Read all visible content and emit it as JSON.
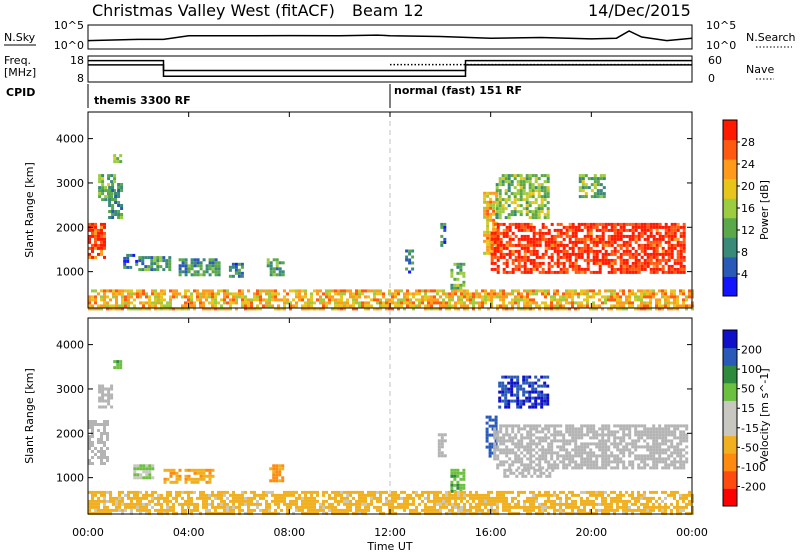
{
  "header": {
    "title": "Christmas Valley West (fitACF)",
    "beam": "Beam 12",
    "date": "14/Dec/2015"
  },
  "top_panels": {
    "nsky_label": "N.Sky",
    "nsearch_label": "N.Search",
    "nsky_ticks": [
      "10^5",
      "10^0"
    ],
    "nsearch_ticks": [
      "10^5",
      "10^0"
    ],
    "freq_label_1": "Freq.",
    "freq_label_2": "[MHz]",
    "freq_ticks": [
      "18",
      "8"
    ],
    "nave_label": "Nave",
    "nave_ticks": [
      "60",
      "0"
    ],
    "cpid_label": "CPID",
    "cpid_segments": [
      {
        "label": "themis 3300 RF",
        "start_hour": 0,
        "end_hour": 12
      },
      {
        "label": "normal (fast) 151 RF",
        "start_hour": 12,
        "end_hour": 24
      }
    ]
  },
  "time_axis": {
    "label": "Time UT",
    "ticks": [
      "00:00",
      "04:00",
      "08:00",
      "12:00",
      "16:00",
      "20:00",
      "00:00"
    ],
    "tick_hours": [
      0,
      4,
      8,
      12,
      16,
      20,
      24
    ]
  },
  "colors": {
    "power": [
      "#1414ff",
      "#2a5ab8",
      "#3a8a7a",
      "#5aa84a",
      "#9ccc40",
      "#e8c51a",
      "#ff9a1a",
      "#ff5a10",
      "#ff1a00"
    ],
    "velocity": [
      "#1010c8",
      "#2a5ab8",
      "#2e8b3e",
      "#6cc040",
      "#c8c8c0",
      "#c8c8c0",
      "#f0b020",
      "#ff8a10",
      "#ff4a10",
      "#ff0000"
    ],
    "ground_scatter": "#b4b4b4"
  },
  "chart_data": [
    {
      "type": "line",
      "name": "N.Sky / N.Search",
      "x_hours": [
        0,
        2,
        3,
        4,
        6,
        8,
        10,
        11.5,
        12,
        14,
        16,
        18,
        20,
        21,
        21.5,
        22,
        23,
        24
      ],
      "nsky_rel": [
        0.35,
        0.4,
        0.4,
        0.55,
        0.55,
        0.56,
        0.55,
        0.58,
        0.55,
        0.52,
        0.45,
        0.48,
        0.42,
        0.45,
        0.75,
        0.5,
        0.35,
        0.45
      ]
    },
    {
      "type": "line",
      "name": "Freq / Nave",
      "freq_steps": [
        {
          "start_hour": 0,
          "end_hour": 3,
          "mhz": 14.6
        },
        {
          "start_hour": 3,
          "end_hour": 15,
          "mhz": 10.2
        },
        {
          "start_hour": 15,
          "end_hour": 24,
          "mhz": 14.6
        }
      ],
      "freq_upper_band": [
        {
          "start_hour": 0,
          "end_hour": 3,
          "mhz": 16.2
        },
        {
          "start_hour": 3,
          "end_hour": 15,
          "mhz": 12.4
        },
        {
          "start_hour": 15,
          "end_hour": 24,
          "mhz": 16.2
        }
      ],
      "nave_dotted": {
        "start_hour": 12,
        "end_hour": 24,
        "value": 40
      }
    },
    {
      "type": "heatmap",
      "title": "Power",
      "ylabel": "Slant Range [km]",
      "y_ticks": [
        1000,
        2000,
        3000,
        4000
      ],
      "ylim": [
        180,
        4600
      ],
      "xlim_hours": [
        0,
        24
      ],
      "colorbar": {
        "label": "Power [dB]",
        "ticks": [
          4,
          8,
          12,
          16,
          20,
          24,
          28
        ],
        "range": [
          0,
          30
        ]
      },
      "blobs": [
        {
          "h0": 0.0,
          "h1": 0.6,
          "r0": 1300,
          "r1": 2100,
          "v": 27
        },
        {
          "h0": 0.4,
          "h1": 1.0,
          "r0": 2600,
          "r1": 3200,
          "v": 12
        },
        {
          "h0": 0.8,
          "h1": 1.3,
          "r0": 2200,
          "r1": 3000,
          "v": 9
        },
        {
          "h0": 1.0,
          "h1": 1.3,
          "r0": 3450,
          "r1": 3650,
          "v": 14
        },
        {
          "h0": 1.4,
          "h1": 1.9,
          "r0": 1100,
          "r1": 1400,
          "v": 7
        },
        {
          "h0": 2.0,
          "h1": 3.2,
          "r0": 1050,
          "r1": 1350,
          "v": 10
        },
        {
          "h0": 3.6,
          "h1": 5.2,
          "r0": 900,
          "r1": 1300,
          "v": 9
        },
        {
          "h0": 5.6,
          "h1": 6.1,
          "r0": 900,
          "r1": 1200,
          "v": 7
        },
        {
          "h0": 7.1,
          "h1": 7.7,
          "r0": 900,
          "r1": 1300,
          "v": 11
        },
        {
          "h0": 12.6,
          "h1": 12.9,
          "r0": 1000,
          "r1": 1500,
          "v": 8
        },
        {
          "h0": 14.0,
          "h1": 14.2,
          "r0": 1600,
          "r1": 2100,
          "v": 8
        },
        {
          "h0": 14.4,
          "h1": 14.9,
          "r0": 600,
          "r1": 1200,
          "v": 12
        },
        {
          "h0": 15.7,
          "h1": 16.2,
          "r0": 1400,
          "r1": 2800,
          "v": 20
        },
        {
          "h0": 16.0,
          "h1": 23.7,
          "r0": 1000,
          "r1": 2100,
          "v": 28
        },
        {
          "h0": 16.2,
          "h1": 18.3,
          "r0": 2200,
          "r1": 3200,
          "v": 14
        },
        {
          "h0": 19.5,
          "h1": 20.5,
          "r0": 2700,
          "r1": 3200,
          "v": 12
        },
        {
          "h0": 0.0,
          "h1": 24.0,
          "r0": 180,
          "r1": 600,
          "v": 20
        }
      ]
    },
    {
      "type": "heatmap",
      "title": "Velocity",
      "ylabel": "Slant Range [km]",
      "y_ticks": [
        1000,
        2000,
        3000,
        4000
      ],
      "ylim": [
        180,
        4600
      ],
      "xlim_hours": [
        0,
        24
      ],
      "colorbar": {
        "label": "Velocity [m s^-1]",
        "ticks": [
          200,
          100,
          50,
          15,
          -15,
          -50,
          -100,
          -200
        ],
        "range": [
          -250,
          250
        ]
      },
      "blobs": [
        {
          "h0": 0.0,
          "h1": 0.8,
          "r0": 1300,
          "r1": 2300,
          "v": 0,
          "gs": true
        },
        {
          "h0": 0.4,
          "h1": 0.9,
          "r0": 2600,
          "r1": 3100,
          "v": 0,
          "gs": true
        },
        {
          "h0": 1.0,
          "h1": 1.3,
          "r0": 3500,
          "r1": 3650,
          "v": 40
        },
        {
          "h0": 1.8,
          "h1": 2.6,
          "r0": 1000,
          "r1": 1300,
          "v": 20
        },
        {
          "h0": 3.0,
          "h1": 5.0,
          "r0": 900,
          "r1": 1200,
          "v": -40
        },
        {
          "h0": 7.2,
          "h1": 7.7,
          "r0": 900,
          "r1": 1300,
          "v": -60
        },
        {
          "h0": 13.9,
          "h1": 14.2,
          "r0": 1500,
          "r1": 2000,
          "v": 0,
          "gs": true
        },
        {
          "h0": 14.4,
          "h1": 14.9,
          "r0": 700,
          "r1": 1200,
          "v": 40
        },
        {
          "h0": 15.8,
          "h1": 16.2,
          "r0": 1500,
          "r1": 2400,
          "v": 180
        },
        {
          "h0": 16.1,
          "h1": 23.8,
          "r0": 1200,
          "r1": 2200,
          "v": 0,
          "gs": true
        },
        {
          "h0": 16.3,
          "h1": 18.3,
          "r0": 2600,
          "r1": 3300,
          "v": 200
        },
        {
          "h0": 16.5,
          "h1": 18.5,
          "r0": 1000,
          "r1": 1200,
          "v": 0,
          "gs": true
        },
        {
          "h0": 0.0,
          "h1": 24.0,
          "r0": 180,
          "r1": 700,
          "v": -30
        }
      ]
    }
  ]
}
